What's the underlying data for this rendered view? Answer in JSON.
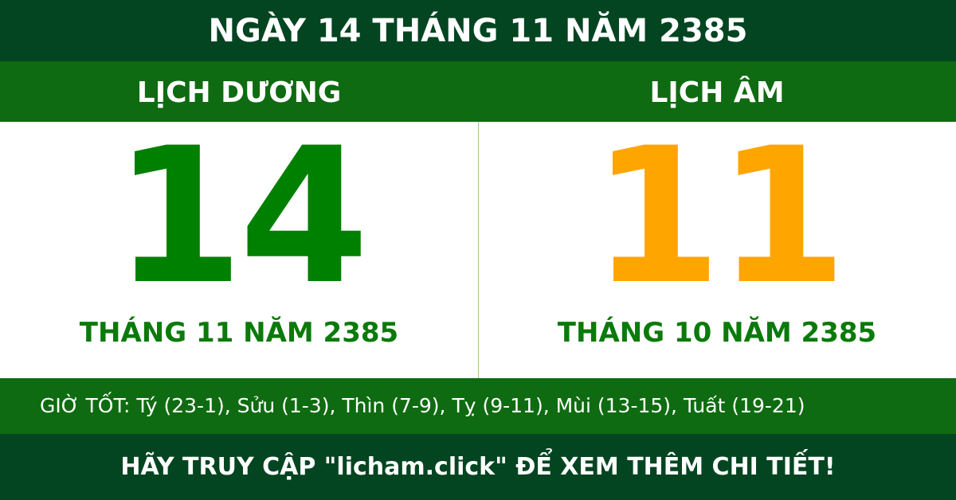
{
  "title": "NGÀY 14 THÁNG 11 NĂM 2385",
  "solar": {
    "label": "LỊCH DƯƠNG",
    "day": "14",
    "month_year": "THÁNG 11 NĂM 2385"
  },
  "lunar": {
    "label": "LỊCH ÂM",
    "day": "11",
    "month_year": "THÁNG 10 NĂM 2385"
  },
  "good_hours": "GIỜ TỐT: Tý (23-1), Sửu (1-3), Thìn (7-9), Tỵ (9-11), Mùi (13-15), Tuất (19-21)",
  "footer": "HÃY TRUY CẬP \"licham.click\" ĐỂ XEM THÊM CHI TIẾT!",
  "colors": {
    "dark_green": "#044521",
    "band_green": "#0f6b11",
    "solar_digit": "#008000",
    "lunar_digit": "#ffa500"
  }
}
